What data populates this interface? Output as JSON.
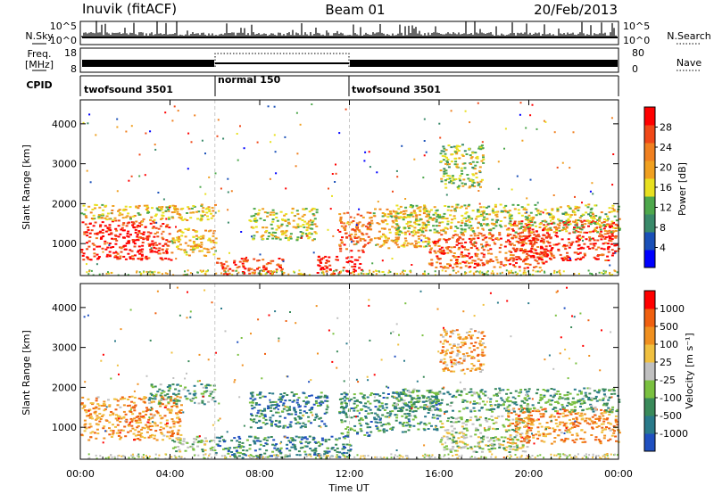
{
  "header": {
    "station": "Inuvik (fitACF)",
    "beam": "Beam 01",
    "date": "20/Feb/2013"
  },
  "side_labels": {
    "nsky": "N.Sky",
    "freq_line1": "Freq.",
    "freq_line2": "[MHz]",
    "cpid": "CPID",
    "nsearch": "N.Search",
    "nave": "Nave"
  },
  "chart_data": [
    {
      "type": "line",
      "panel": "noise",
      "series": [
        {
          "name": "N.Sky",
          "style": "solid"
        },
        {
          "name": "N.Search",
          "style": "dotted"
        }
      ],
      "y_left_ticks": [
        "10^5",
        "10^0"
      ],
      "y_right_ticks": [
        "10^5",
        "10^0"
      ],
      "yscale": "log"
    },
    {
      "type": "line",
      "panel": "frequency",
      "y_left_ticks": [
        "18",
        "8"
      ],
      "y_right_ticks": [
        "80",
        "0"
      ],
      "frequency_mhz": [
        {
          "start": 0,
          "end": 6,
          "value": 10.5
        },
        {
          "start": 6,
          "end": 12,
          "value": 10.5
        },
        {
          "start": 12,
          "end": 24,
          "value": 10.5
        }
      ],
      "nave": [
        {
          "start": 0,
          "end": 6,
          "value": 23
        },
        {
          "start": 6,
          "end": 12,
          "value": 60
        },
        {
          "start": 12,
          "end": 24,
          "value": 23
        }
      ]
    },
    {
      "type": "table",
      "panel": "cpid",
      "segments": [
        {
          "start": 0,
          "end": 6,
          "label": "twofsound 3501"
        },
        {
          "start": 6,
          "end": 12,
          "label": "normal 150"
        },
        {
          "start": 12,
          "end": 24,
          "label": "twofsound 3501"
        }
      ]
    },
    {
      "type": "heatmap",
      "panel": "power",
      "ylabel": "Slant Range [km]",
      "yticks": [
        1000,
        2000,
        3000,
        4000
      ],
      "ylim": [
        200,
        4600
      ],
      "xlim": [
        0,
        24
      ],
      "colorbar": {
        "label": "Power [dB]",
        "ticks": [
          "4",
          "8",
          "12",
          "16",
          "20",
          "24",
          "28"
        ],
        "colors": [
          "#0000ff",
          "#1a50b8",
          "#3a8a6a",
          "#4ea84c",
          "#e8e020",
          "#f0a020",
          "#f08020",
          "#f04818",
          "#ff0000"
        ]
      },
      "regions": [
        {
          "t0": 0,
          "t1": 4,
          "r0": 600,
          "r1": 1600,
          "level": 0.9
        },
        {
          "t0": 0,
          "t1": 6,
          "r0": 1600,
          "r1": 2000,
          "level": 0.55
        },
        {
          "t0": 4,
          "t1": 6,
          "r0": 700,
          "r1": 1400,
          "level": 0.6
        },
        {
          "t0": 6,
          "t1": 9,
          "r0": 250,
          "r1": 650,
          "level": 0.85
        },
        {
          "t0": 7.5,
          "t1": 10.5,
          "r0": 1100,
          "r1": 1900,
          "level": 0.5
        },
        {
          "t0": 10.5,
          "t1": 12.5,
          "r0": 250,
          "r1": 700,
          "level": 0.95
        },
        {
          "t0": 11.5,
          "t1": 13,
          "r0": 800,
          "r1": 1800,
          "level": 0.75
        },
        {
          "t0": 13,
          "t1": 15.5,
          "r0": 900,
          "r1": 1900,
          "level": 0.6
        },
        {
          "t0": 16,
          "t1": 18,
          "r0": 2400,
          "r1": 3500,
          "level": 0.45
        },
        {
          "t0": 15.5,
          "t1": 21,
          "r0": 400,
          "r1": 1300,
          "level": 0.8
        },
        {
          "t0": 19,
          "t1": 24,
          "r0": 600,
          "r1": 1600,
          "level": 0.9
        },
        {
          "t0": 14,
          "t1": 24,
          "r0": 1300,
          "r1": 2000,
          "level": 0.5
        }
      ]
    },
    {
      "type": "heatmap",
      "panel": "velocity",
      "xlabel": "Time UT",
      "ylabel": "Slant Range [km]",
      "yticks": [
        1000,
        2000,
        3000,
        4000
      ],
      "ylim": [
        200,
        4600
      ],
      "xlim": [
        0,
        24
      ],
      "xticks": [
        "00:00",
        "04:00",
        "08:00",
        "12:00",
        "16:00",
        "20:00",
        "00:00"
      ],
      "colorbar": {
        "label": "Velocity [m s⁻¹]",
        "ticks": [
          "1000",
          "500",
          "100",
          "25",
          "-25",
          "-100",
          "-500",
          "-1000"
        ],
        "colors": [
          "#2050c0",
          "#2a7a8a",
          "#3a8a5a",
          "#7ac040",
          "#c0c0c0",
          "#f0c040",
          "#f09020",
          "#f06010",
          "#ff0000"
        ]
      },
      "regions": [
        {
          "t0": 0,
          "t1": 4.5,
          "r0": 700,
          "r1": 1800,
          "level": 0.72
        },
        {
          "t0": 3,
          "t1": 6,
          "r0": 1600,
          "r1": 2100,
          "level": 0.3
        },
        {
          "t0": 4,
          "t1": 6,
          "r0": 400,
          "r1": 800,
          "level": 0.45
        },
        {
          "t0": 6,
          "t1": 12,
          "r0": 250,
          "r1": 800,
          "level": 0.2
        },
        {
          "t0": 7.5,
          "t1": 11,
          "r0": 1000,
          "r1": 1900,
          "level": 0.2
        },
        {
          "t0": 11.5,
          "t1": 13,
          "r0": 800,
          "r1": 1900,
          "level": 0.25
        },
        {
          "t0": 13,
          "t1": 16,
          "r0": 900,
          "r1": 1900,
          "level": 0.25
        },
        {
          "t0": 16,
          "t1": 18,
          "r0": 2400,
          "r1": 3500,
          "level": 0.68
        },
        {
          "t0": 16,
          "t1": 20,
          "r0": 400,
          "r1": 1300,
          "level": 0.45
        },
        {
          "t0": 19,
          "t1": 24,
          "r0": 600,
          "r1": 1500,
          "level": 0.72
        },
        {
          "t0": 14,
          "t1": 24,
          "r0": 1400,
          "r1": 2000,
          "level": 0.3
        }
      ]
    }
  ]
}
